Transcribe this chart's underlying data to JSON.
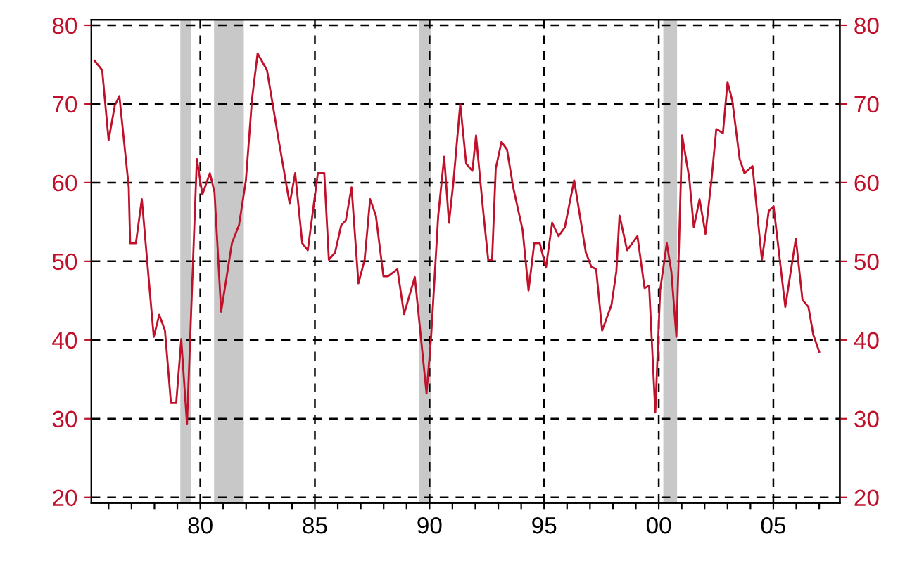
{
  "chart_data": {
    "type": "line",
    "x": [
      1975.39,
      1975.72,
      1976.0,
      1976.27,
      1976.47,
      1976.88,
      1976.94,
      1977.19,
      1977.45,
      1977.97,
      1978.21,
      1978.46,
      1978.72,
      1978.95,
      1979.17,
      1979.42,
      1979.85,
      1980.09,
      1980.42,
      1980.62,
      1980.91,
      1981.38,
      1981.69,
      1981.99,
      1982.26,
      1982.5,
      1982.91,
      1983.42,
      1983.9,
      1984.14,
      1984.45,
      1984.69,
      1985.13,
      1985.41,
      1985.61,
      1985.88,
      1986.15,
      1986.35,
      1986.6,
      1986.9,
      1987.17,
      1987.41,
      1987.66,
      1987.99,
      1988.19,
      1988.6,
      1988.89,
      1989.36,
      1989.87,
      1990.07,
      1990.38,
      1990.64,
      1990.85,
      1991.05,
      1991.34,
      1991.6,
      1991.87,
      1992.03,
      1992.32,
      1992.56,
      1992.73,
      1992.89,
      1993.14,
      1993.38,
      1993.65,
      1994.06,
      1994.32,
      1994.57,
      1994.81,
      1995.08,
      1995.35,
      1995.63,
      1995.9,
      1996.31,
      1996.82,
      1997.06,
      1997.27,
      1997.53,
      1997.94,
      1998.15,
      1998.29,
      1998.62,
      1999.07,
      1999.38,
      1999.58,
      1999.85,
      2000.06,
      2000.35,
      2000.55,
      2000.77,
      2001.02,
      2001.33,
      2001.53,
      2001.78,
      2002.04,
      2002.31,
      2002.51,
      2002.8,
      2003.0,
      2003.21,
      2003.53,
      2003.74,
      2004.09,
      2004.5,
      2004.8,
      2005.01,
      2005.52,
      2005.98,
      2006.27,
      2006.53,
      2006.74,
      2007.0
    ],
    "series": [
      {
        "color": "#c0102a",
        "values": [
          75.5,
          74.3,
          65.4,
          69.8,
          71.0,
          59.4,
          52.3,
          52.3,
          57.9,
          40.4,
          43.2,
          41.2,
          32.0,
          32.0,
          40.1,
          29.3,
          63.0,
          58.5,
          61.2,
          58.8,
          43.6,
          52.3,
          54.6,
          60.3,
          70.7,
          76.4,
          74.3,
          65.4,
          57.3,
          61.2,
          52.3,
          51.4,
          61.2,
          61.2,
          50.2,
          51.1,
          54.6,
          55.2,
          59.4,
          47.2,
          50.2,
          57.9,
          55.8,
          48.1,
          48.1,
          49.0,
          43.3,
          48.0,
          33.2,
          40.4,
          55.8,
          63.3,
          54.9,
          60.3,
          70.0,
          62.4,
          61.5,
          66.0,
          57.0,
          50.2,
          50.2,
          61.8,
          65.2,
          64.2,
          59.4,
          54.0,
          46.3,
          52.3,
          52.3,
          49.2,
          54.9,
          53.2,
          54.3,
          60.3,
          51.1,
          49.3,
          49.0,
          41.2,
          44.5,
          48.7,
          55.8,
          51.4,
          53.2,
          46.6,
          46.9,
          30.8,
          46.3,
          52.3,
          48.7,
          40.4,
          66.0,
          60.6,
          54.3,
          57.9,
          53.5,
          60.6,
          66.8,
          66.3,
          72.8,
          70.4,
          63.0,
          61.2,
          62.1,
          50.2,
          56.4,
          57.0,
          44.2,
          52.9,
          45.1,
          44.2,
          40.7,
          38.5
        ]
      }
    ],
    "xlim": [
      1975.25,
      2007.9
    ],
    "xticks": [
      {
        "value": 1976,
        "label": null
      },
      {
        "value": 1977,
        "label": null
      },
      {
        "value": 1978,
        "label": null
      },
      {
        "value": 1979,
        "label": null
      },
      {
        "value": 1980,
        "label": "80"
      },
      {
        "value": 1981,
        "label": null
      },
      {
        "value": 1982,
        "label": null
      },
      {
        "value": 1983,
        "label": null
      },
      {
        "value": 1984,
        "label": null
      },
      {
        "value": 1985,
        "label": "85"
      },
      {
        "value": 1986,
        "label": null
      },
      {
        "value": 1987,
        "label": null
      },
      {
        "value": 1988,
        "label": null
      },
      {
        "value": 1989,
        "label": null
      },
      {
        "value": 1990,
        "label": "90"
      },
      {
        "value": 1991,
        "label": null
      },
      {
        "value": 1992,
        "label": null
      },
      {
        "value": 1993,
        "label": null
      },
      {
        "value": 1994,
        "label": null
      },
      {
        "value": 1995,
        "label": "95"
      },
      {
        "value": 1996,
        "label": null
      },
      {
        "value": 1997,
        "label": null
      },
      {
        "value": 1998,
        "label": null
      },
      {
        "value": 1999,
        "label": null
      },
      {
        "value": 2000,
        "label": "00"
      },
      {
        "value": 2001,
        "label": null
      },
      {
        "value": 2002,
        "label": null
      },
      {
        "value": 2003,
        "label": null
      },
      {
        "value": 2004,
        "label": null
      },
      {
        "value": 2005,
        "label": "05"
      },
      {
        "value": 2006,
        "label": null
      },
      {
        "value": 2007,
        "label": null
      }
    ],
    "ylim": [
      19.3,
      80.7
    ],
    "yticks": [
      20,
      30,
      40,
      50,
      60,
      70,
      80
    ],
    "y2lim": [
      19.3,
      80.7
    ],
    "y2ticks": [
      20,
      30,
      40,
      50,
      60,
      70,
      80
    ],
    "bands": [
      {
        "axis": "x",
        "from": 1979.13,
        "to": 1979.6,
        "color": "#c8c8c8"
      },
      {
        "axis": "x",
        "from": 1980.6,
        "to": 1981.9,
        "color": "#c8c8c8"
      },
      {
        "axis": "x",
        "from": 1989.55,
        "to": 1990.07,
        "color": "#c8c8c8"
      },
      {
        "axis": "x",
        "from": 2000.2,
        "to": 2000.8,
        "color": "#c8c8c8"
      }
    ],
    "grid": true,
    "line_style": "solid",
    "marker": "none",
    "legend": false
  }
}
